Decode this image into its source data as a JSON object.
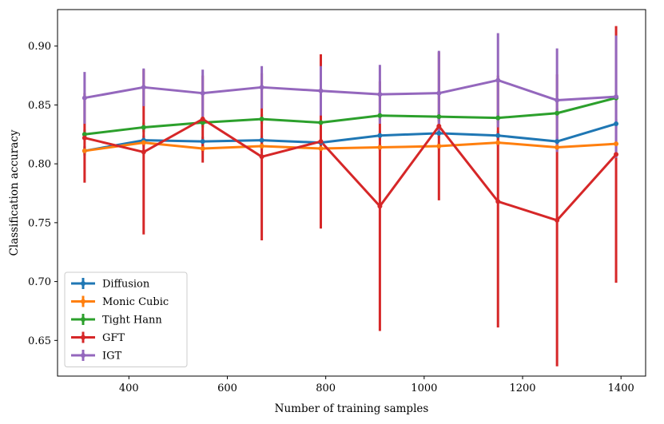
{
  "chart_data": {
    "type": "line",
    "title": "",
    "xlabel": "Number of training samples",
    "ylabel": "Classification accuracy",
    "xlim": [
      255,
      1450
    ],
    "ylim": [
      0.6197,
      0.931
    ],
    "xticks": [
      400,
      600,
      800,
      1000,
      1200,
      1400
    ],
    "yticks": [
      0.65,
      0.7,
      0.75,
      0.8,
      0.85,
      0.9
    ],
    "xtick_labels": [
      "400",
      "600",
      "800",
      "1000",
      "1200",
      "1400"
    ],
    "ytick_labels": [
      "0.65",
      "0.70",
      "0.75",
      "0.80",
      "0.85",
      "0.90"
    ],
    "grid": false,
    "legend_position": "lower-left",
    "x": [
      310,
      430,
      550,
      670,
      790,
      910,
      1030,
      1150,
      1270,
      1390
    ],
    "series": [
      {
        "name": "Diffusion",
        "color": "#1f77b4",
        "values": [
          0.811,
          0.82,
          0.819,
          0.82,
          0.818,
          0.824,
          0.826,
          0.824,
          0.819,
          0.834
        ],
        "errors": [
          0.004,
          0.004,
          0.004,
          0.004,
          0.004,
          0.004,
          0.004,
          0.004,
          0.004,
          0.004
        ]
      },
      {
        "name": "Monic Cubic",
        "color": "#ff7f0e",
        "values": [
          0.811,
          0.818,
          0.813,
          0.815,
          0.813,
          0.814,
          0.815,
          0.818,
          0.814,
          0.817
        ],
        "errors": [
          0.003,
          0.003,
          0.003,
          0.003,
          0.003,
          0.003,
          0.003,
          0.003,
          0.003,
          0.003
        ]
      },
      {
        "name": "Tight Hann",
        "color": "#2ca02c",
        "values": [
          0.825,
          0.831,
          0.835,
          0.838,
          0.835,
          0.841,
          0.84,
          0.839,
          0.843,
          0.856
        ],
        "errors": [
          0.004,
          0.004,
          0.004,
          0.004,
          0.004,
          0.004,
          0.004,
          0.004,
          0.004,
          0.004
        ]
      },
      {
        "name": "GFT",
        "color": "#d62728",
        "values": [
          0.822,
          0.81,
          0.838,
          0.806,
          0.819,
          0.764,
          0.832,
          0.768,
          0.752,
          0.808
        ],
        "errors": [
          0.038,
          0.07,
          0.037,
          0.071,
          0.074,
          0.106,
          0.063,
          0.107,
          0.124,
          0.109
        ]
      },
      {
        "name": "IGT",
        "color": "#9467bd",
        "values": [
          0.856,
          0.865,
          0.86,
          0.865,
          0.862,
          0.859,
          0.86,
          0.871,
          0.854,
          0.857
        ],
        "errors": [
          0.022,
          0.016,
          0.02,
          0.018,
          0.021,
          0.025,
          0.036,
          0.04,
          0.044,
          0.052
        ]
      }
    ]
  }
}
